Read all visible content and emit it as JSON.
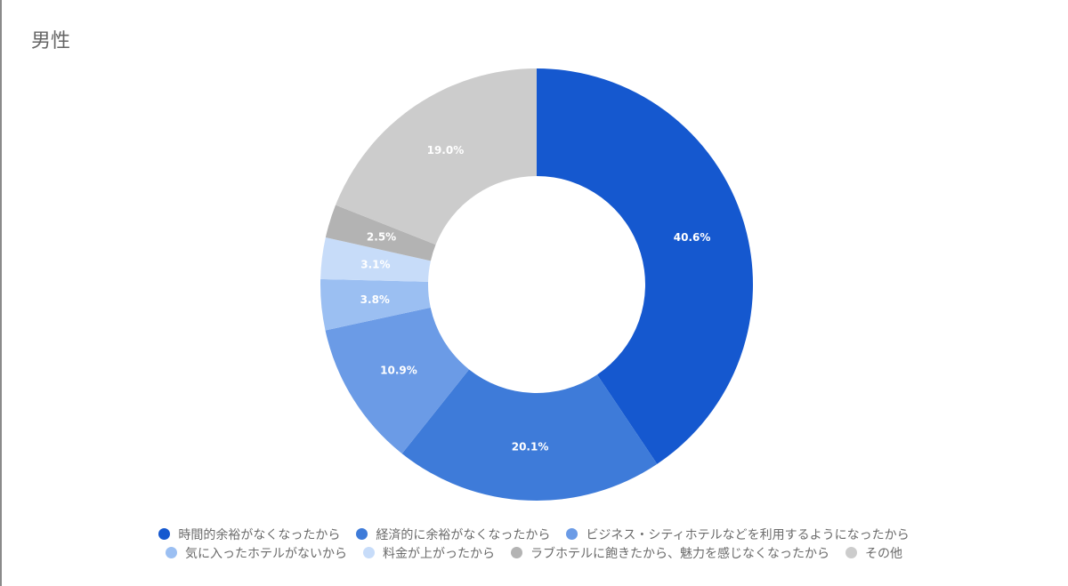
{
  "header": {
    "title": "男性"
  },
  "chart_data": {
    "type": "pie",
    "subtype": "donut",
    "title": "男性",
    "categories": [
      "時間的余裕がなくなったから",
      "経済的に余裕がなくなったから",
      "ビジネス・シティホテルなどを利用するようになったから",
      "気に入ったホテルがないから",
      "料金が上がったから",
      "ラブホテルに飽きたから、魅力を感じなくなったから",
      "その他"
    ],
    "values": [
      40.6,
      20.1,
      10.9,
      3.8,
      3.1,
      2.5,
      19.0
    ],
    "labels": [
      "40.6%",
      "20.1%",
      "10.9%",
      "3.8%",
      "3.1%",
      "2.5%",
      "19.0%"
    ],
    "colors": [
      "#1558cf",
      "#3e7bd9",
      "#6b9be6",
      "#9bbff2",
      "#c7dcf9",
      "#b3b3b3",
      "#cccccc"
    ],
    "legend_position": "bottom",
    "start_angle": "top, clockwise"
  },
  "legend": {
    "row1": [
      {
        "label": "時間的余裕がなくなったから",
        "color": "#1558cf"
      },
      {
        "label": "経済的に余裕がなくなったから",
        "color": "#3e7bd9"
      },
      {
        "label": "ビジネス・シティホテルなどを利用するようになったから",
        "color": "#6b9be6"
      }
    ],
    "row2": [
      {
        "label": "気に入ったホテルがないから",
        "color": "#9bbff2"
      },
      {
        "label": "料金が上がったから",
        "color": "#c7dcf9"
      },
      {
        "label": "ラブホテルに飽きたから、魅力を感じなくなったから",
        "color": "#b3b3b3"
      },
      {
        "label": "その他",
        "color": "#cccccc"
      }
    ]
  }
}
